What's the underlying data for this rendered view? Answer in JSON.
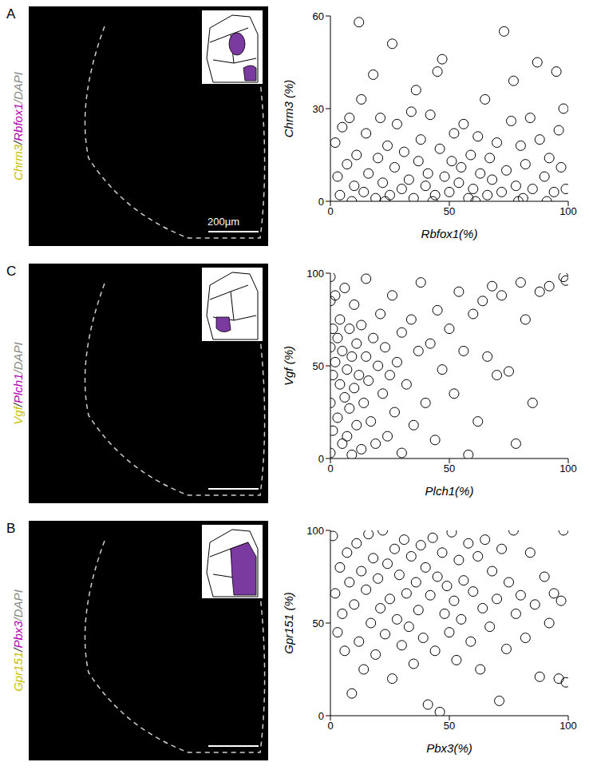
{
  "chart_data": [
    {
      "type": "scatter",
      "panel": "A",
      "image_label": [
        {
          "text": "Chrm3",
          "color": "#c8c000"
        },
        {
          "text": "/",
          "color": "#333333"
        },
        {
          "text": "Rbfox1",
          "color": "#b000b0"
        },
        {
          "text": "/DAPI",
          "color": "#888888"
        }
      ],
      "scale_bar": "200µm",
      "x_label": "Rbfox1(%)",
      "y_label": "Chrm3 (%)",
      "xlim": [
        0,
        100
      ],
      "xticks": [
        0,
        50,
        100
      ],
      "ylim": [
        0,
        60
      ],
      "yticks": [
        0,
        30,
        60
      ],
      "color": "#000000",
      "marker": "circle_open",
      "x": [
        2,
        3,
        5,
        4,
        7,
        8,
        10,
        12,
        11,
        13,
        14,
        15,
        16,
        18,
        19,
        20,
        21,
        22,
        24,
        25,
        26,
        27,
        28,
        30,
        31,
        33,
        34,
        35,
        36,
        37,
        38,
        40,
        41,
        42,
        44,
        45,
        46,
        47,
        48,
        50,
        51,
        52,
        54,
        55,
        56,
        58,
        59,
        60,
        62,
        63,
        65,
        66,
        67,
        68,
        70,
        72,
        73,
        74,
        76,
        77,
        78,
        80,
        81,
        82,
        84,
        85,
        87,
        88,
        90,
        92,
        94,
        95,
        96,
        97,
        98,
        99,
        9,
        23,
        43,
        61,
        79,
        91
      ],
      "values": [
        19,
        8,
        24,
        2,
        12,
        27,
        5,
        58,
        15,
        33,
        3,
        22,
        9,
        41,
        1,
        14,
        27,
        6,
        18,
        2,
        51,
        11,
        25,
        4,
        16,
        7,
        29,
        1,
        36,
        13,
        20,
        5,
        9,
        28,
        2,
        42,
        17,
        46,
        8,
        3,
        13,
        22,
        6,
        11,
        25,
        1,
        15,
        4,
        21,
        9,
        33,
        2,
        14,
        7,
        19,
        3,
        55,
        10,
        26,
        39,
        5,
        18,
        1,
        12,
        27,
        4,
        45,
        20,
        8,
        14,
        3,
        42,
        23,
        11,
        30,
        4,
        0,
        0,
        0,
        0,
        0,
        0
      ]
    },
    {
      "type": "scatter",
      "panel": "C",
      "image_label": [
        {
          "text": "Vgf",
          "color": "#c8c000"
        },
        {
          "text": "/",
          "color": "#333333"
        },
        {
          "text": "Plch1",
          "color": "#b000b0"
        },
        {
          "text": "/DAPI",
          "color": "#888888"
        }
      ],
      "x_label": "Plch1(%)",
      "y_label": "Vgf (%)",
      "xlim": [
        0,
        100
      ],
      "xticks": [
        0,
        50,
        100
      ],
      "ylim": [
        0,
        100
      ],
      "yticks": [
        0,
        50,
        100
      ],
      "color": "#000000",
      "marker": "circle_open",
      "x": [
        0,
        0,
        1,
        0,
        1,
        0,
        1,
        0,
        2,
        2,
        3,
        3,
        4,
        4,
        5,
        5,
        6,
        6,
        7,
        7,
        8,
        8,
        9,
        9,
        10,
        10,
        11,
        11,
        12,
        13,
        13,
        14,
        15,
        15,
        16,
        17,
        18,
        19,
        20,
        21,
        22,
        23,
        24,
        25,
        26,
        27,
        28,
        30,
        30,
        32,
        34,
        35,
        37,
        38,
        40,
        42,
        44,
        45,
        47,
        50,
        52,
        54,
        56,
        58,
        60,
        62,
        64,
        66,
        68,
        70,
        72,
        75,
        78,
        80,
        82,
        85,
        88,
        92,
        98,
        99
      ],
      "values": [
        98,
        85,
        70,
        60,
        45,
        30,
        15,
        3,
        88,
        52,
        65,
        22,
        75,
        40,
        8,
        58,
        33,
        92,
        48,
        12,
        70,
        27,
        55,
        2,
        83,
        38,
        62,
        18,
        45,
        5,
        72,
        30,
        97,
        55,
        42,
        20,
        65,
        8,
        50,
        78,
        35,
        60,
        12,
        45,
        88,
        25,
        52,
        68,
        3,
        40,
        75,
        18,
        58,
        95,
        30,
        62,
        10,
        80,
        48,
        70,
        35,
        90,
        58,
        2,
        78,
        20,
        85,
        55,
        93,
        45,
        88,
        47,
        8,
        95,
        75,
        30,
        90,
        93,
        98,
        96
      ]
    },
    {
      "type": "scatter",
      "panel": "B",
      "image_label": [
        {
          "text": "Gpr151",
          "color": "#c8c000"
        },
        {
          "text": "/",
          "color": "#333333"
        },
        {
          "text": "Pbx3",
          "color": "#b000b0"
        },
        {
          "text": "/DAPI",
          "color": "#888888"
        }
      ],
      "x_label": "Pbx3(%)",
      "y_label": "Gpr151 (%)",
      "xlim": [
        0,
        100
      ],
      "xticks": [
        0,
        50,
        100
      ],
      "ylim": [
        0,
        100
      ],
      "yticks": [
        0,
        50,
        100
      ],
      "color": "#000000",
      "marker": "circle_open",
      "x": [
        1,
        2,
        3,
        4,
        5,
        6,
        7,
        8,
        9,
        10,
        11,
        12,
        13,
        14,
        15,
        16,
        17,
        18,
        19,
        20,
        21,
        22,
        23,
        24,
        25,
        26,
        27,
        28,
        29,
        30,
        31,
        32,
        33,
        34,
        35,
        36,
        37,
        38,
        39,
        40,
        41,
        42,
        43,
        44,
        45,
        46,
        47,
        48,
        49,
        50,
        51,
        52,
        53,
        54,
        55,
        56,
        58,
        59,
        60,
        62,
        63,
        64,
        65,
        67,
        68,
        70,
        71,
        72,
        74,
        75,
        77,
        78,
        80,
        82,
        84,
        86,
        88,
        90,
        92,
        94,
        96,
        97,
        98,
        99
      ],
      "values": [
        97,
        66,
        45,
        80,
        55,
        35,
        88,
        72,
        12,
        60,
        93,
        40,
        78,
        25,
        68,
        98,
        50,
        85,
        33,
        74,
        58,
        100,
        44,
        82,
        63,
        20,
        90,
        52,
        76,
        38,
        95,
        66,
        48,
        86,
        28,
        72,
        57,
        92,
        42,
        80,
        6,
        65,
        96,
        35,
        75,
        2,
        88,
        55,
        70,
        45,
        99,
        62,
        30,
        84,
        52,
        73,
        93,
        40,
        67,
        86,
        25,
        58,
        95,
        48,
        78,
        63,
        8,
        90,
        36,
        72,
        100,
        55,
        65,
        42,
        88,
        60,
        21,
        75,
        50,
        66,
        20,
        62,
        100,
        18
      ]
    }
  ]
}
